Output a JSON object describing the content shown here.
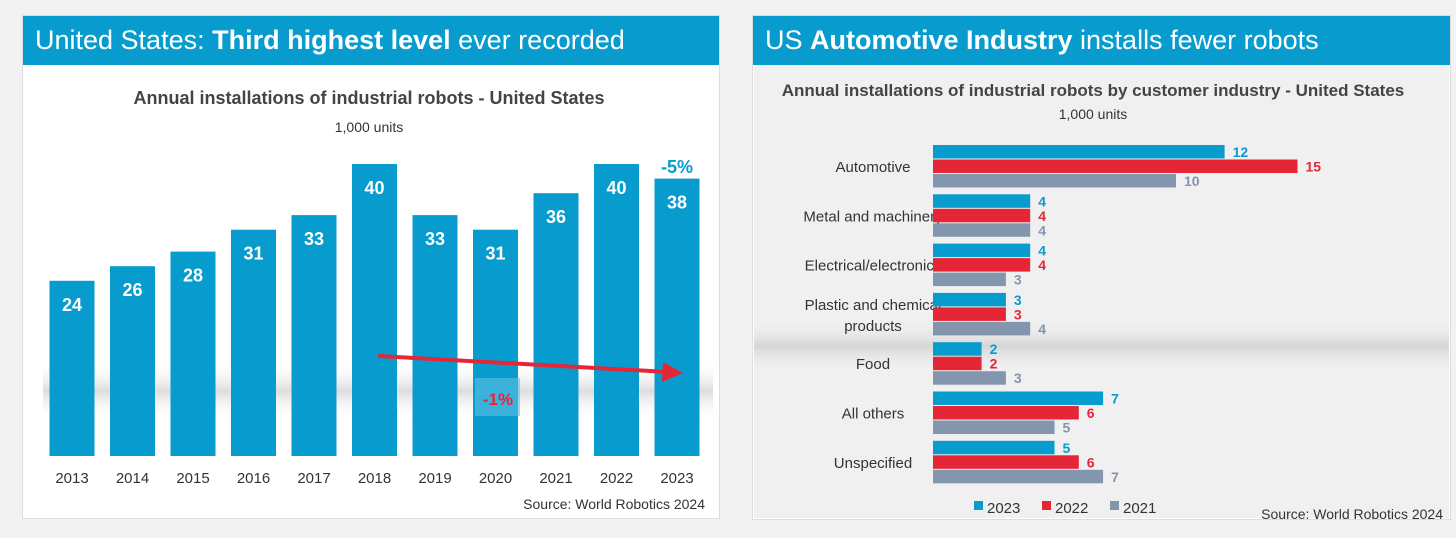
{
  "left": {
    "header": {
      "pre": "United States: ",
      "bold": "Third highest level",
      "post": " ever recorded"
    },
    "source": "Source: World Robotics 2024"
  },
  "right": {
    "header": {
      "pre": "US ",
      "bold": "Automotive Industry",
      "post": " installs fewer robots"
    },
    "source": "Source: World Robotics 2024"
  },
  "colors": {
    "blue": "#079ccd",
    "red": "#e52637",
    "gray": "#8496ae"
  },
  "chart_data": [
    {
      "type": "bar",
      "title": "Annual installations of industrial robots  - United States",
      "subtitle": "1,000 units",
      "categories": [
        "2013",
        "2014",
        "2015",
        "2016",
        "2017",
        "2018",
        "2019",
        "2020",
        "2021",
        "2022",
        "2023"
      ],
      "values": [
        24,
        26,
        28,
        31,
        33,
        40,
        33,
        31,
        36,
        40,
        38
      ],
      "annotations": [
        "-1%",
        "-5%"
      ],
      "ylim": [
        0,
        42
      ]
    },
    {
      "type": "bar",
      "orientation": "horizontal",
      "title": "Annual installations of industrial robots by customer industry - United States",
      "subtitle": "1,000 units",
      "categories": [
        "Automotive",
        "Metal and machinery",
        "Electrical/electronics",
        "Plastic and chemical products",
        "Food",
        "All others",
        "Unspecified"
      ],
      "series": [
        {
          "name": "2023",
          "values": [
            12,
            4,
            4,
            3,
            2,
            7,
            5
          ]
        },
        {
          "name": "2022",
          "values": [
            15,
            4,
            4,
            3,
            2,
            6,
            6
          ]
        },
        {
          "name": "2021",
          "values": [
            10,
            4,
            3,
            4,
            3,
            5,
            7
          ]
        }
      ],
      "legend": "bottom",
      "xlim": [
        0,
        15
      ]
    }
  ]
}
